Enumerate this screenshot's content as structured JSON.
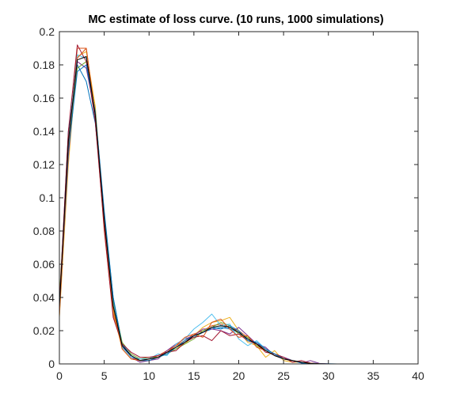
{
  "chart_data": {
    "type": "line",
    "title": "MC estimate of loss curve. (10 runs, 1000 simulations)",
    "xlabel": "",
    "ylabel": "",
    "xlim": [
      0,
      40
    ],
    "ylim": [
      0,
      0.2
    ],
    "xticks": [
      0,
      5,
      10,
      15,
      20,
      25,
      30,
      35,
      40
    ],
    "yticks": [
      0,
      0.02,
      0.04,
      0.06,
      0.08,
      0.1,
      0.12,
      0.14,
      0.16,
      0.18,
      0.2
    ],
    "xtick_labels": [
      "0",
      "5",
      "10",
      "15",
      "20",
      "25",
      "30",
      "35",
      "40"
    ],
    "ytick_labels": [
      "0",
      "0.02",
      "0.04",
      "0.06",
      "0.08",
      "0.1",
      "0.12",
      "0.14",
      "0.16",
      "0.18",
      "0.2"
    ],
    "grid": false,
    "legend": "none",
    "x": [
      0,
      1,
      2,
      3,
      4,
      5,
      6,
      7,
      8,
      9,
      10,
      11,
      12,
      13,
      14,
      15,
      16,
      17,
      18,
      19,
      20,
      21,
      22,
      23,
      24,
      25,
      26,
      27,
      28,
      29,
      30,
      31,
      32,
      33,
      34,
      35,
      36,
      37,
      38,
      39,
      40
    ],
    "series": [
      {
        "color": "#0072BD",
        "values": [
          0.035,
          0.14,
          0.18,
          0.17,
          0.145,
          0.09,
          0.04,
          0.012,
          0.005,
          0.002,
          0.003,
          0.004,
          0.007,
          0.01,
          0.013,
          0.016,
          0.019,
          0.021,
          0.022,
          0.021,
          0.019,
          0.015,
          0.012,
          0.008,
          0.006,
          0.004,
          0.002,
          0.001,
          0.0005,
          0.0002,
          0.0001,
          0,
          0,
          0,
          0,
          0,
          0,
          0,
          0,
          0,
          0
        ]
      },
      {
        "color": "#D95319",
        "values": [
          0.03,
          0.13,
          0.19,
          0.19,
          0.15,
          0.08,
          0.03,
          0.01,
          0.004,
          0.002,
          0.003,
          0.005,
          0.008,
          0.011,
          0.014,
          0.018,
          0.02,
          0.023,
          0.024,
          0.022,
          0.02,
          0.016,
          0.012,
          0.009,
          0.006,
          0.003,
          0.002,
          0.001,
          0.0005,
          0,
          0,
          0,
          0,
          0,
          0,
          0,
          0,
          0,
          0,
          0,
          0
        ]
      },
      {
        "color": "#EDB120",
        "values": [
          0.028,
          0.12,
          0.185,
          0.188,
          0.155,
          0.085,
          0.032,
          0.009,
          0.003,
          0.002,
          0.002,
          0.004,
          0.006,
          0.01,
          0.012,
          0.017,
          0.022,
          0.025,
          0.026,
          0.028,
          0.02,
          0.013,
          0.011,
          0.004,
          0.008,
          0.002,
          0.001,
          0.001,
          0.0003,
          0,
          0,
          0,
          0,
          0,
          0,
          0,
          0,
          0,
          0,
          0,
          0
        ]
      },
      {
        "color": "#7E2F8E",
        "values": [
          0.032,
          0.125,
          0.182,
          0.178,
          0.15,
          0.088,
          0.035,
          0.011,
          0.004,
          0.001,
          0.002,
          0.003,
          0.008,
          0.012,
          0.015,
          0.017,
          0.021,
          0.021,
          0.02,
          0.018,
          0.022,
          0.017,
          0.012,
          0.01,
          0.005,
          0.004,
          0.002,
          0.0005,
          0.002,
          0.0003,
          0,
          0,
          0,
          0,
          0,
          0,
          0,
          0,
          0,
          0,
          0
        ]
      },
      {
        "color": "#77AC30",
        "values": [
          0.04,
          0.13,
          0.178,
          0.182,
          0.152,
          0.09,
          0.038,
          0.013,
          0.006,
          0.003,
          0.004,
          0.004,
          0.006,
          0.009,
          0.012,
          0.015,
          0.02,
          0.022,
          0.025,
          0.023,
          0.018,
          0.016,
          0.011,
          0.008,
          0.006,
          0.003,
          0.002,
          0.001,
          0.0002,
          0,
          0,
          0,
          0,
          0,
          0,
          0,
          0,
          0,
          0,
          0,
          0
        ]
      },
      {
        "color": "#4DBEEE",
        "values": [
          0.033,
          0.135,
          0.186,
          0.184,
          0.148,
          0.086,
          0.036,
          0.01,
          0.004,
          0.003,
          0.003,
          0.006,
          0.005,
          0.012,
          0.015,
          0.021,
          0.025,
          0.03,
          0.023,
          0.024,
          0.015,
          0.011,
          0.014,
          0.009,
          0.005,
          0.003,
          0.002,
          0.001,
          0.0005,
          0.0002,
          0,
          0,
          0,
          0,
          0,
          0,
          0,
          0,
          0,
          0,
          0
        ]
      },
      {
        "color": "#A2142F",
        "values": [
          0.036,
          0.14,
          0.192,
          0.182,
          0.146,
          0.082,
          0.028,
          0.012,
          0.007,
          0.004,
          0.004,
          0.005,
          0.007,
          0.008,
          0.013,
          0.016,
          0.017,
          0.014,
          0.02,
          0.017,
          0.018,
          0.014,
          0.012,
          0.007,
          0.006,
          0.004,
          0.001,
          0.002,
          0.0005,
          0.0001,
          0,
          0,
          0,
          0,
          0,
          0,
          0,
          0,
          0,
          0,
          0
        ]
      },
      {
        "color": "#0072BD",
        "values": [
          0.031,
          0.128,
          0.176,
          0.18,
          0.152,
          0.092,
          0.04,
          0.011,
          0.005,
          0.002,
          0.002,
          0.004,
          0.006,
          0.01,
          0.014,
          0.017,
          0.019,
          0.022,
          0.021,
          0.023,
          0.02,
          0.014,
          0.013,
          0.009,
          0.006,
          0.003,
          0.002,
          0.0005,
          0.0002,
          0,
          0,
          0,
          0,
          0,
          0,
          0,
          0,
          0,
          0,
          0,
          0
        ]
      },
      {
        "color": "#D95319",
        "values": [
          0.029,
          0.132,
          0.184,
          0.19,
          0.15,
          0.087,
          0.034,
          0.009,
          0.003,
          0.002,
          0.003,
          0.004,
          0.007,
          0.011,
          0.016,
          0.018,
          0.016,
          0.025,
          0.027,
          0.021,
          0.016,
          0.017,
          0.01,
          0.008,
          0.005,
          0.003,
          0.002,
          0.001,
          0.0004,
          0,
          0,
          0,
          0,
          0,
          0,
          0,
          0,
          0,
          0,
          0,
          0
        ]
      },
      {
        "color": "#000000",
        "values": [
          0.034,
          0.134,
          0.183,
          0.185,
          0.15,
          0.087,
          0.035,
          0.011,
          0.005,
          0.002,
          0.003,
          0.004,
          0.007,
          0.01,
          0.013,
          0.017,
          0.019,
          0.022,
          0.023,
          0.022,
          0.019,
          0.015,
          0.012,
          0.008,
          0.005,
          0.003,
          0.002,
          0.001,
          0.0003,
          0.0001,
          0,
          0,
          0,
          0,
          0,
          0,
          0,
          0,
          0,
          0,
          0
        ]
      }
    ]
  }
}
